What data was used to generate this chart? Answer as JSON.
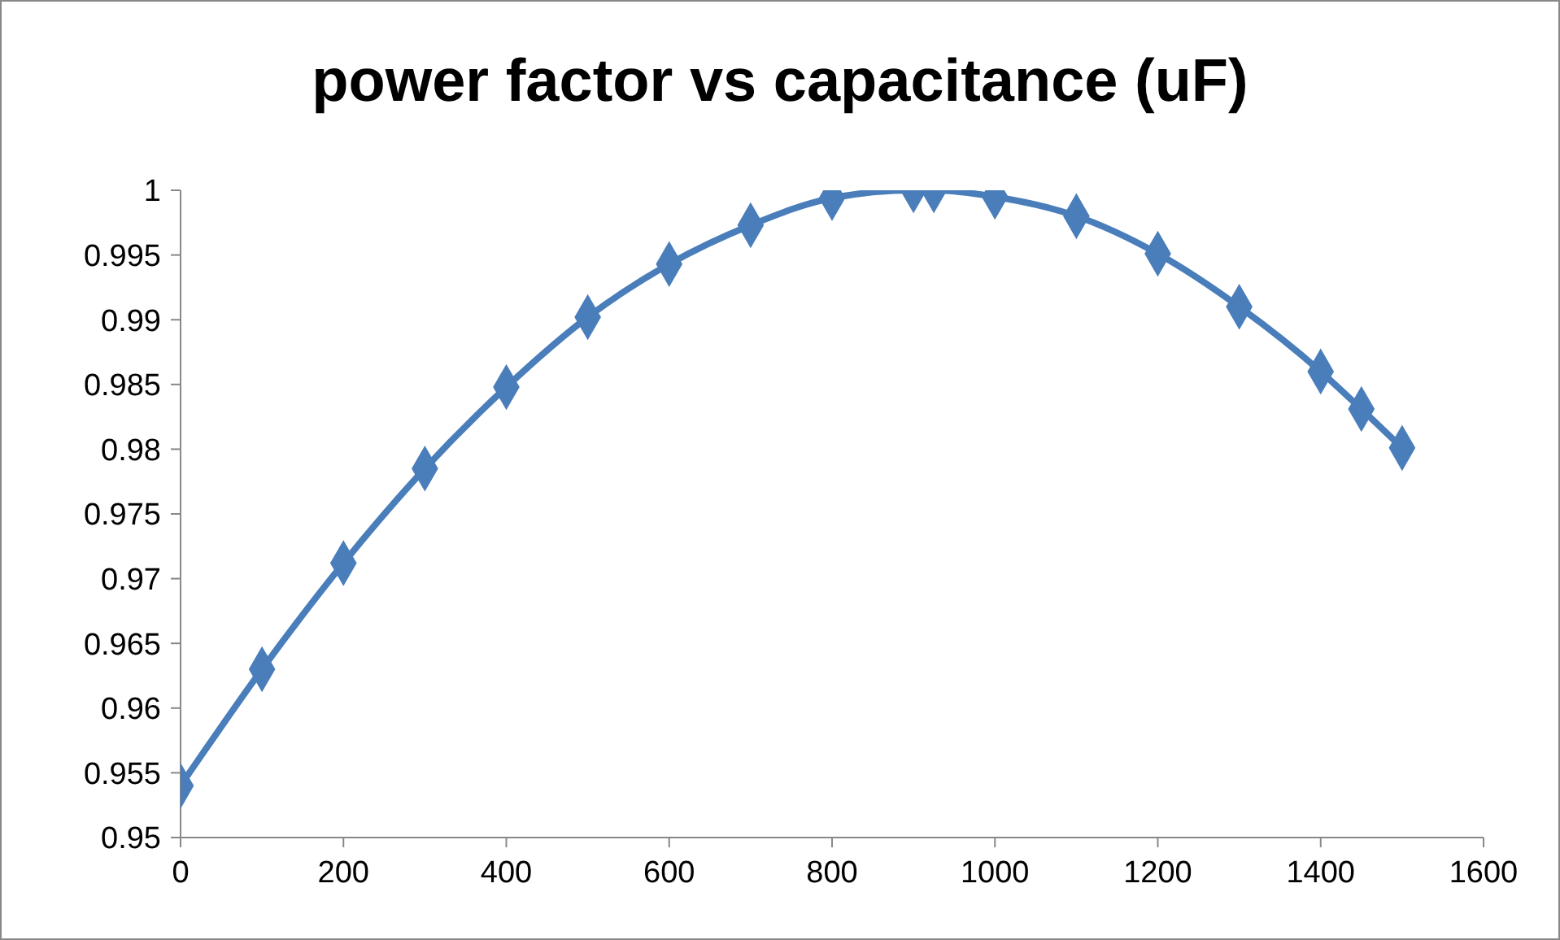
{
  "chart_data": {
    "type": "line",
    "title": "power factor vs capacitance (uF)",
    "x": [
      0,
      100,
      200,
      300,
      400,
      500,
      600,
      700,
      800,
      900,
      925,
      1000,
      1100,
      1200,
      1300,
      1400,
      1450,
      1500
    ],
    "series": [
      {
        "color": "#4a7ebb",
        "values": [
          0.954,
          0.963,
          0.9712,
          0.9785,
          0.9848,
          0.9902,
          0.9943,
          0.9973,
          0.9994,
          1.0,
          1.0,
          0.9995,
          0.998,
          0.9951,
          0.991,
          0.986,
          0.9831,
          0.9801
        ]
      }
    ],
    "xlim": [
      0,
      1600
    ],
    "xticks": [
      0,
      200,
      400,
      600,
      800,
      1000,
      1200,
      1400,
      1600
    ],
    "ylim": [
      0.95,
      1
    ],
    "yticks": [
      0.95,
      0.955,
      0.96,
      0.965,
      0.97,
      0.975,
      0.98,
      0.985,
      0.99,
      0.995,
      1
    ],
    "grid": false,
    "legend": false,
    "marker": "diamond",
    "line_style": "solid"
  }
}
